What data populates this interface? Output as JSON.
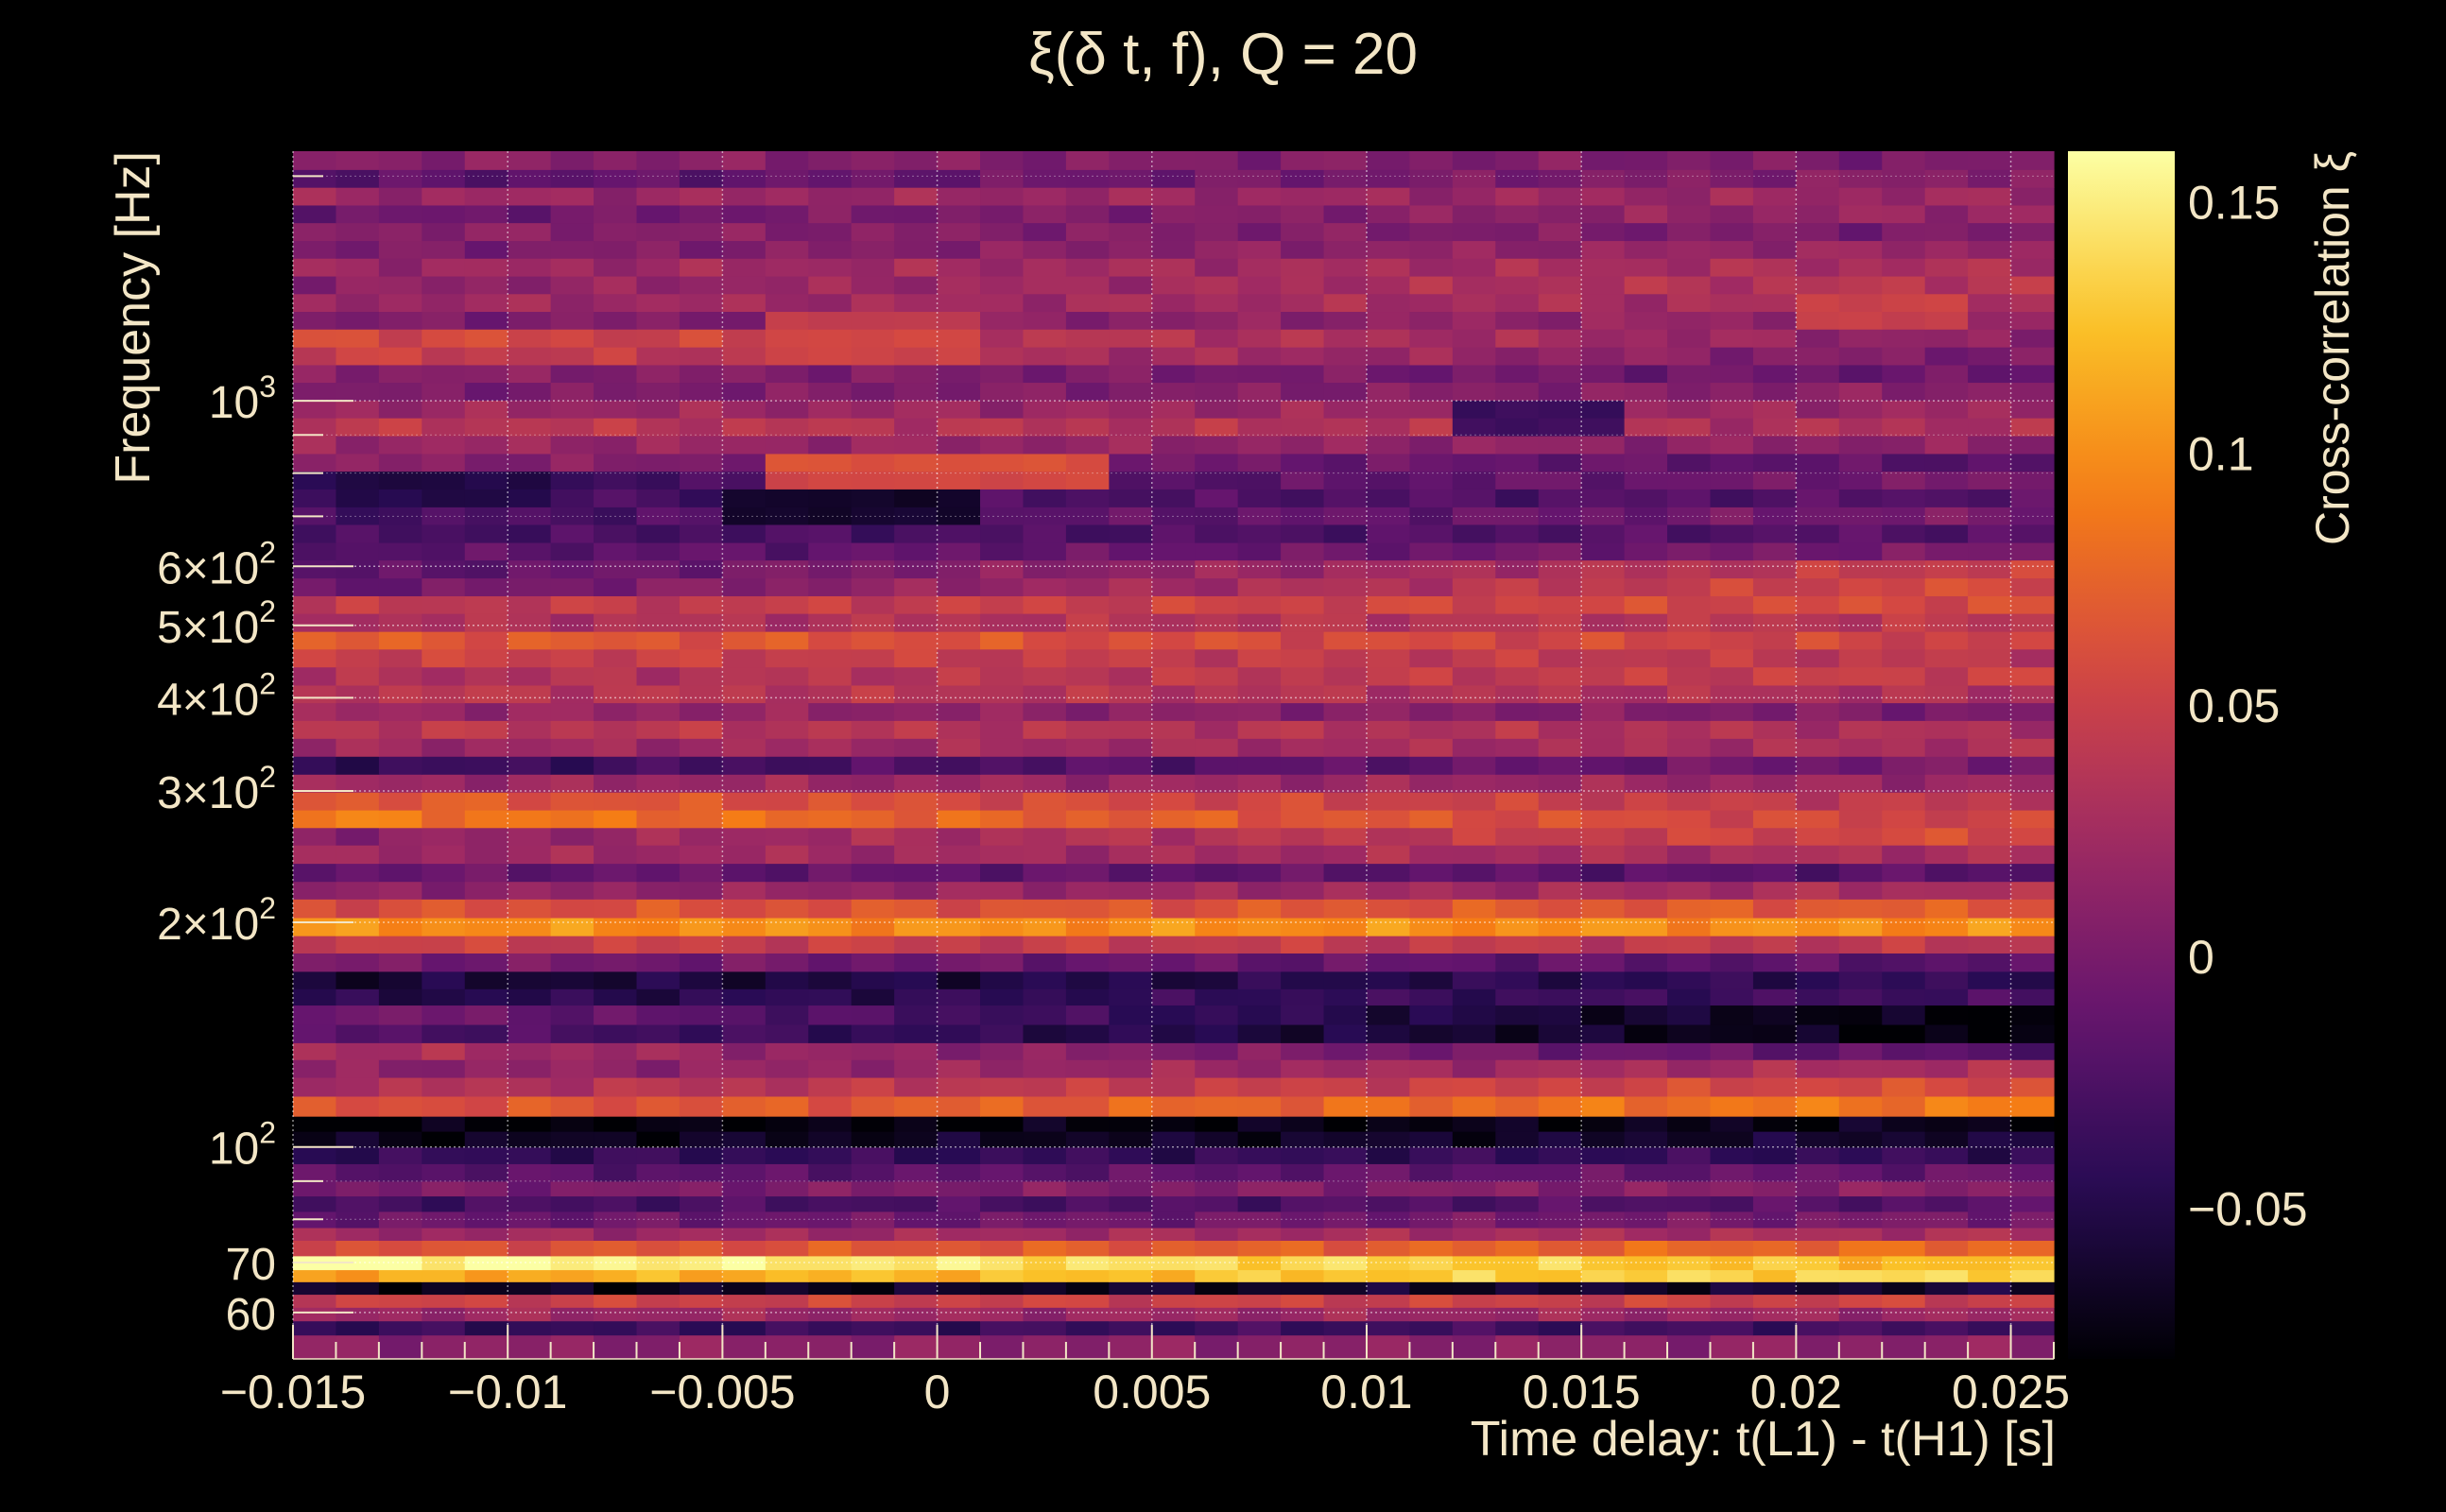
{
  "chart_data": {
    "type": "heatmap",
    "title": "ξ(δ t, f), Q = 20",
    "xlabel": "Time delay: t(L1) - t(H1) [s]",
    "ylabel": "Frequency [Hz]",
    "colorbar_label": "Cross-correlation ξ",
    "xlim": [
      -0.015,
      0.026
    ],
    "ylim": [
      52,
      2160
    ],
    "yscale": "log",
    "zlim": [
      -0.08,
      0.16
    ],
    "grid": true,
    "colormap": [
      "#000004",
      "#280b54",
      "#65156e",
      "#9f2a63",
      "#d44842",
      "#f57d15",
      "#fac228",
      "#fcffa4"
    ],
    "x_ticks": [
      {
        "value": -0.015,
        "label": "−0.015"
      },
      {
        "value": -0.01,
        "label": "−0.01"
      },
      {
        "value": -0.005,
        "label": "−0.005"
      },
      {
        "value": 0,
        "label": "0"
      },
      {
        "value": 0.005,
        "label": "0.005"
      },
      {
        "value": 0.01,
        "label": "0.01"
      },
      {
        "value": 0.015,
        "label": "0.015"
      },
      {
        "value": 0.02,
        "label": "0.02"
      },
      {
        "value": 0.025,
        "label": "0.025"
      }
    ],
    "y_ticks": [
      {
        "value": 1000,
        "label": "10",
        "sup": "3"
      },
      {
        "value": 600,
        "label": "6×10",
        "sup": "2"
      },
      {
        "value": 500,
        "label": "5×10",
        "sup": "2"
      },
      {
        "value": 400,
        "label": "4×10",
        "sup": "2"
      },
      {
        "value": 300,
        "label": "3×10",
        "sup": "2"
      },
      {
        "value": 200,
        "label": "2×10",
        "sup": "2"
      },
      {
        "value": 100,
        "label": "10",
        "sup": "2"
      },
      {
        "value": 70,
        "label": "70",
        "sup": ""
      },
      {
        "value": 60,
        "label": "60",
        "sup": ""
      }
    ],
    "colorbar_ticks": [
      {
        "value": 0.15,
        "label": "0.15"
      },
      {
        "value": 0.1,
        "label": "0.1"
      },
      {
        "value": 0.05,
        "label": "0.05"
      },
      {
        "value": 0,
        "label": "0"
      },
      {
        "value": -0.05,
        "label": "−0.05"
      }
    ],
    "n_time_bins": 41,
    "bands": [
      {
        "f_low": 52,
        "f_high": 56,
        "value_start": 0.01,
        "value_end": 0.01
      },
      {
        "f_low": 56,
        "f_high": 58.5,
        "value_start": -0.04,
        "value_end": -0.03
      },
      {
        "f_low": 58.5,
        "f_high": 61,
        "value_start": 0.02,
        "value_end": 0.02
      },
      {
        "f_low": 61,
        "f_high": 63.5,
        "value_start": 0.05,
        "value_end": 0.05
      },
      {
        "f_low": 63.5,
        "f_high": 66,
        "value_start": -0.07,
        "value_end": -0.06
      },
      {
        "f_low": 66,
        "f_high": 68.5,
        "value_start": 0.11,
        "value_end": 0.14
      },
      {
        "f_low": 68.5,
        "f_high": 71.5,
        "value_start": 0.16,
        "value_end": 0.12
      },
      {
        "f_low": 71.5,
        "f_high": 75,
        "value_start": 0.06,
        "value_end": 0.08
      },
      {
        "f_low": 75,
        "f_high": 78,
        "value_start": 0.02,
        "value_end": 0.03
      },
      {
        "f_low": 78,
        "f_high": 82,
        "value_start": -0.01,
        "value_end": 0.0
      },
      {
        "f_low": 82,
        "f_high": 86,
        "value_start": -0.03,
        "value_end": -0.02
      },
      {
        "f_low": 86,
        "f_high": 90,
        "value_start": 0.0,
        "value_end": 0.01
      },
      {
        "f_low": 90,
        "f_high": 95,
        "value_start": -0.02,
        "value_end": -0.01
      },
      {
        "f_low": 95,
        "f_high": 100,
        "value_start": -0.04,
        "value_end": -0.04
      },
      {
        "f_low": 100,
        "f_high": 105,
        "value_start": -0.07,
        "value_end": -0.06
      },
      {
        "f_low": 105,
        "f_high": 110,
        "value_start": -0.08,
        "value_end": -0.07
      },
      {
        "f_low": 110,
        "f_high": 117,
        "value_start": 0.06,
        "value_end": 0.09
      },
      {
        "f_low": 117,
        "f_high": 124,
        "value_start": 0.03,
        "value_end": 0.06
      },
      {
        "f_low": 124,
        "f_high": 131,
        "value_start": 0.01,
        "value_end": 0.03
      },
      {
        "f_low": 131,
        "f_high": 138,
        "value_start": 0.03,
        "value_end": -0.02
      },
      {
        "f_low": 138,
        "f_high": 146,
        "value_start": -0.02,
        "value_end": -0.08
      },
      {
        "f_low": 146,
        "f_high": 155,
        "value_start": 0.0,
        "value_end": -0.08
      },
      {
        "f_low": 155,
        "f_high": 163,
        "value_start": -0.05,
        "value_end": -0.03
      },
      {
        "f_low": 163,
        "f_high": 172,
        "value_start": -0.06,
        "value_end": -0.04
      },
      {
        "f_low": 172,
        "f_high": 182,
        "value_start": 0.0,
        "value_end": -0.02
      },
      {
        "f_low": 182,
        "f_high": 192,
        "value_start": 0.05,
        "value_end": 0.04
      },
      {
        "f_low": 192,
        "f_high": 203,
        "value_start": 0.1,
        "value_end": 0.1
      },
      {
        "f_low": 203,
        "f_high": 215,
        "value_start": 0.06,
        "value_end": 0.07
      },
      {
        "f_low": 215,
        "f_high": 227,
        "value_start": 0.01,
        "value_end": 0.03
      },
      {
        "f_low": 227,
        "f_high": 240,
        "value_start": -0.01,
        "value_end": -0.02
      },
      {
        "f_low": 240,
        "f_high": 254,
        "value_start": 0.02,
        "value_end": 0.03
      },
      {
        "f_low": 254,
        "f_high": 268,
        "value_start": 0.01,
        "value_end": 0.06
      },
      {
        "f_low": 268,
        "f_high": 283,
        "value_start": 0.09,
        "value_end": 0.05
      },
      {
        "f_low": 283,
        "f_high": 299,
        "value_start": 0.07,
        "value_end": 0.04
      },
      {
        "f_low": 299,
        "f_high": 316,
        "value_start": 0.02,
        "value_end": 0.02
      },
      {
        "f_low": 316,
        "f_high": 334,
        "value_start": -0.04,
        "value_end": 0.0
      },
      {
        "f_low": 334,
        "f_high": 353,
        "value_start": 0.02,
        "value_end": 0.03
      },
      {
        "f_low": 353,
        "f_high": 373,
        "value_start": 0.04,
        "value_end": 0.03
      },
      {
        "f_low": 373,
        "f_high": 394,
        "value_start": 0.02,
        "value_end": 0.0
      },
      {
        "f_low": 394,
        "f_high": 416,
        "value_start": 0.04,
        "value_end": 0.03
      },
      {
        "f_low": 416,
        "f_high": 440,
        "value_start": 0.03,
        "value_end": 0.05
      },
      {
        "f_low": 440,
        "f_high": 465,
        "value_start": 0.05,
        "value_end": 0.04
      },
      {
        "f_low": 465,
        "f_high": 491,
        "value_start": 0.07,
        "value_end": 0.05
      },
      {
        "f_low": 491,
        "f_high": 519,
        "value_start": 0.03,
        "value_end": 0.04
      },
      {
        "f_low": 519,
        "f_high": 548,
        "value_start": 0.04,
        "value_end": 0.06
      },
      {
        "f_low": 548,
        "f_high": 579,
        "value_start": -0.01,
        "value_end": 0.06
      },
      {
        "f_low": 579,
        "f_high": 612,
        "value_start": -0.02,
        "value_end": 0.05
      },
      {
        "f_low": 612,
        "f_high": 646,
        "value_start": -0.02,
        "value_end": 0.0
      },
      {
        "f_low": 646,
        "f_high": 683,
        "value_start": -0.03,
        "value_end": -0.02
      },
      {
        "f_low": 683,
        "f_high": 721,
        "value_start": -0.03,
        "value_end": 0.0
      },
      {
        "f_low": 721,
        "f_high": 762,
        "value_start": -0.03,
        "value_end": -0.02
      },
      {
        "f_low": 762,
        "f_high": 805,
        "value_start": -0.04,
        "value_end": 0.0
      },
      {
        "f_low": 805,
        "f_high": 850,
        "value_start": 0.01,
        "value_end": -0.02
      },
      {
        "f_low": 850,
        "f_high": 898,
        "value_start": 0.02,
        "value_end": 0.01
      },
      {
        "f_low": 898,
        "f_high": 949,
        "value_start": 0.04,
        "value_end": 0.03
      },
      {
        "f_low": 949,
        "f_high": 1002,
        "value_start": 0.02,
        "value_end": 0.02
      },
      {
        "f_low": 1002,
        "f_high": 1059,
        "value_start": 0.0,
        "value_end": 0.01
      },
      {
        "f_low": 1059,
        "f_high": 1118,
        "value_start": 0.01,
        "value_end": -0.01
      },
      {
        "f_low": 1118,
        "f_high": 1181,
        "value_start": 0.05,
        "value_end": 0.0
      },
      {
        "f_low": 1181,
        "f_high": 1248,
        "value_start": 0.06,
        "value_end": 0.01
      },
      {
        "f_low": 1248,
        "f_high": 1318,
        "value_start": 0.0,
        "value_end": 0.02
      },
      {
        "f_low": 1318,
        "f_high": 1392,
        "value_start": 0.02,
        "value_end": 0.03
      },
      {
        "f_low": 1392,
        "f_high": 1470,
        "value_start": 0.01,
        "value_end": 0.04
      },
      {
        "f_low": 1470,
        "f_high": 1553,
        "value_start": 0.02,
        "value_end": 0.03
      },
      {
        "f_low": 1553,
        "f_high": 1640,
        "value_start": 0.0,
        "value_end": 0.02
      },
      {
        "f_low": 1640,
        "f_high": 1733,
        "value_start": 0.01,
        "value_end": 0.0
      },
      {
        "f_low": 1733,
        "f_high": 1830,
        "value_start": -0.01,
        "value_end": 0.02
      },
      {
        "f_low": 1830,
        "f_high": 1933,
        "value_start": 0.02,
        "value_end": 0.02
      },
      {
        "f_low": 1933,
        "f_high": 2042,
        "value_start": -0.02,
        "value_end": 0.01
      },
      {
        "f_low": 2042,
        "f_high": 2160,
        "value_start": 0.01,
        "value_end": 0.0
      }
    ],
    "features": [
      {
        "f_low": 762,
        "f_high": 850,
        "t_start": -0.0045,
        "t_end": 0.004,
        "value": 0.09
      },
      {
        "f_low": 683,
        "f_high": 762,
        "t_start": -0.0055,
        "t_end": 0.001,
        "value": -0.08
      },
      {
        "f_low": 721,
        "f_high": 805,
        "t_start": -0.0135,
        "t_end": -0.009,
        "value": -0.06
      },
      {
        "f_low": 898,
        "f_high": 1002,
        "t_start": 0.012,
        "t_end": 0.016,
        "value": -0.06
      },
      {
        "f_low": 1118,
        "f_high": 1318,
        "t_start": -0.004,
        "t_end": 0.001,
        "value": 0.06
      },
      {
        "f_low": 1248,
        "f_high": 1392,
        "t_start": 0.02,
        "t_end": 0.024,
        "value": 0.06
      }
    ]
  }
}
